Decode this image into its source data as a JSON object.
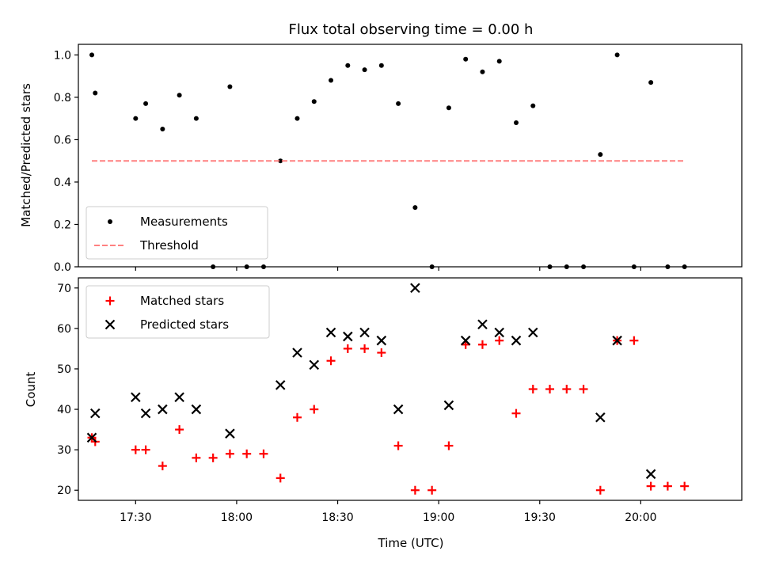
{
  "chart_data": [
    {
      "type": "scatter",
      "title": "Flux total observing time = 0.00 h",
      "xlabel": "",
      "ylabel": "Matched/Predicted stars",
      "ylim": [
        0,
        1.05
      ],
      "yticks": [
        "0.0",
        "0.2",
        "0.4",
        "0.6",
        "0.8",
        "1.0"
      ],
      "xlim": [
        "17:13",
        "20:30"
      ],
      "grid": false,
      "legend_position": "lower-left",
      "series": [
        {
          "name": "Measurements",
          "marker": "dot",
          "color": "#000000",
          "x": [
            "17:17",
            "17:18",
            "17:30",
            "17:33",
            "17:38",
            "17:43",
            "17:48",
            "17:53",
            "17:58",
            "18:03",
            "18:08",
            "18:13",
            "18:18",
            "18:23",
            "18:28",
            "18:33",
            "18:38",
            "18:43",
            "18:48",
            "18:53",
            "18:58",
            "19:03",
            "19:08",
            "19:13",
            "19:18",
            "19:23",
            "19:28",
            "19:33",
            "19:38",
            "19:43",
            "19:48",
            "19:53",
            "19:58",
            "20:03",
            "20:08",
            "20:13"
          ],
          "y": [
            1.0,
            0.82,
            0.7,
            0.77,
            0.65,
            0.81,
            0.7,
            0.0,
            0.85,
            0.0,
            0.0,
            0.5,
            0.7,
            0.78,
            0.88,
            0.95,
            0.93,
            0.95,
            0.77,
            0.28,
            0.0,
            0.75,
            0.98,
            0.92,
            0.97,
            0.68,
            0.76,
            0.0,
            0.0,
            0.0,
            0.53,
            1.0,
            0.0,
            0.87,
            0.0,
            0.0
          ]
        },
        {
          "name": "Threshold",
          "style": "dashed",
          "color": "#ff8080",
          "x": [
            "17:17",
            "20:13"
          ],
          "y": [
            0.5,
            0.5
          ]
        }
      ]
    },
    {
      "type": "scatter",
      "title": "",
      "xlabel": "Time (UTC)",
      "ylabel": "Count",
      "ylim": [
        17.5,
        72.5
      ],
      "yticks": [
        "20",
        "30",
        "40",
        "50",
        "60",
        "70"
      ],
      "xlim": [
        "17:13",
        "20:30"
      ],
      "xticks": [
        "17:30",
        "18:00",
        "18:30",
        "19:00",
        "19:30",
        "20:00"
      ],
      "grid": false,
      "legend_position": "top-left",
      "series": [
        {
          "name": "Matched stars",
          "marker": "plus",
          "color": "#ff0000",
          "x": [
            "17:17",
            "17:18",
            "17:30",
            "17:33",
            "17:38",
            "17:43",
            "17:48",
            "17:53",
            "17:58",
            "18:03",
            "18:08",
            "18:13",
            "18:18",
            "18:23",
            "18:28",
            "18:33",
            "18:38",
            "18:43",
            "18:48",
            "18:53",
            "18:58",
            "19:03",
            "19:08",
            "19:13",
            "19:18",
            "19:23",
            "19:28",
            "19:33",
            "19:38",
            "19:43",
            "19:48",
            "19:53",
            "19:58",
            "20:03",
            "20:08",
            "20:13"
          ],
          "y": [
            33,
            32,
            30,
            30,
            26,
            35,
            28,
            28,
            29,
            29,
            29,
            23,
            38,
            40,
            52,
            55,
            55,
            54,
            31,
            20,
            20,
            31,
            56,
            56,
            57,
            39,
            45,
            45,
            45,
            45,
            20,
            57,
            57,
            21,
            21,
            21
          ]
        },
        {
          "name": "Predicted stars",
          "marker": "x",
          "color": "#000000",
          "x": [
            "17:17",
            "17:18",
            "17:30",
            "17:33",
            "17:38",
            "17:43",
            "17:48",
            "17:58",
            "18:13",
            "18:18",
            "18:23",
            "18:28",
            "18:33",
            "18:38",
            "18:43",
            "18:48",
            "18:53",
            "19:03",
            "19:08",
            "19:13",
            "19:18",
            "19:23",
            "19:28",
            "19:48",
            "19:53",
            "20:03"
          ],
          "y": [
            33,
            39,
            43,
            39,
            40,
            43,
            40,
            34,
            46,
            54,
            51,
            59,
            58,
            59,
            57,
            40,
            70,
            41,
            57,
            61,
            59,
            57,
            59,
            38,
            57,
            24
          ]
        }
      ]
    }
  ]
}
